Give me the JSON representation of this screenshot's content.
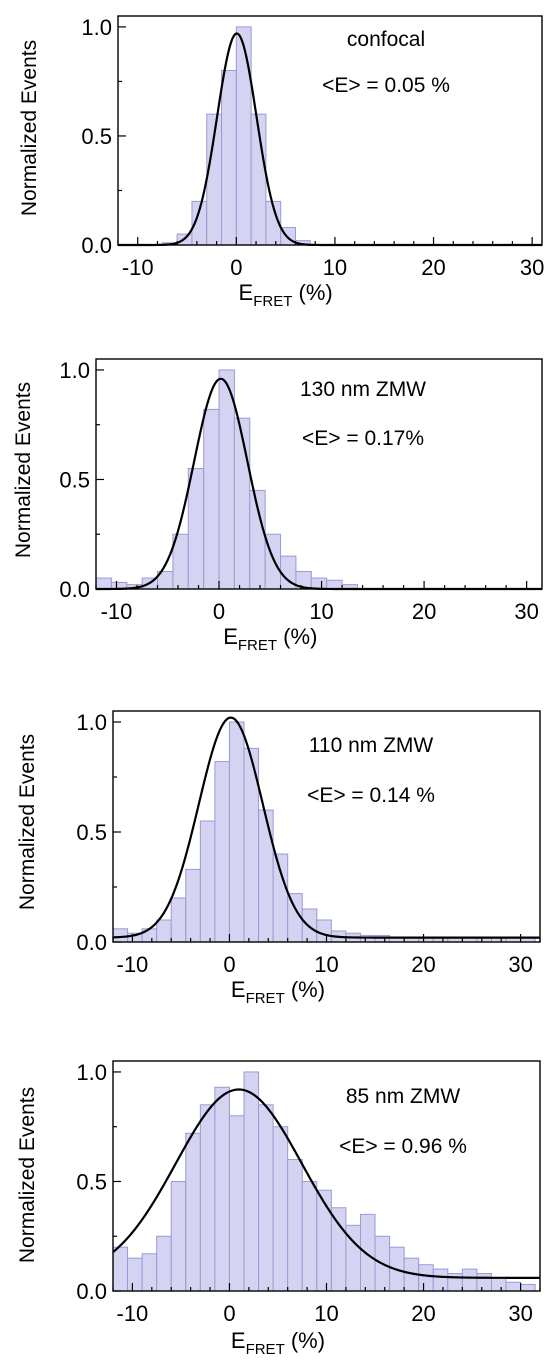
{
  "figure": {
    "bar_fill": "#d4d4f2",
    "bar_stroke": "#9a9ad4",
    "fit_color": "#000000"
  },
  "chart_data": [
    {
      "type": "bar",
      "xlabel_main": "E",
      "xlabel_sub": "FRET",
      "xlabel_unit": " (%)",
      "ylabel": "Normalized Events",
      "xlim": [
        -12,
        31
      ],
      "ylim": [
        0,
        1.05
      ],
      "xticks": [
        "-10",
        "0",
        "10",
        "20",
        "30"
      ],
      "xtick_values": [
        -10,
        0,
        10,
        20,
        30
      ],
      "yticks": [
        "0.0",
        "0.5",
        "1.0"
      ],
      "ytick_values": [
        0,
        0.5,
        1.0
      ],
      "annotations": [
        "confocal",
        "<E> = 0.05 %"
      ],
      "bin_width": 1.5,
      "bins_x": [
        -6.75,
        -5.25,
        -3.75,
        -2.25,
        -0.75,
        0.75,
        2.25,
        3.75,
        5.25,
        6.75
      ],
      "values": [
        0.01,
        0.05,
        0.2,
        0.6,
        0.8,
        1.0,
        0.6,
        0.2,
        0.08,
        0.02
      ],
      "fit": {
        "amplitude": 0.97,
        "center": 0.05,
        "sigma": 2.0,
        "offset": 0.0
      }
    },
    {
      "type": "bar",
      "xlabel_main": "E",
      "xlabel_sub": "FRET",
      "xlabel_unit": " (%)",
      "ylabel": "Normalized Events",
      "xlim": [
        -12,
        31.5
      ],
      "ylim": [
        0,
        1.05
      ],
      "xticks": [
        "-10",
        "0",
        "10",
        "20",
        "30"
      ],
      "xtick_values": [
        -10,
        0,
        10,
        20,
        30
      ],
      "yticks": [
        "0.0",
        "0.5",
        "1.0"
      ],
      "ytick_values": [
        0,
        0.5,
        1.0
      ],
      "annotations": [
        "130 nm ZMW",
        "<E> = 0.17%"
      ],
      "bin_width": 1.5,
      "bins_x": [
        -11.25,
        -9.75,
        -8.25,
        -6.75,
        -5.25,
        -3.75,
        -2.25,
        -0.75,
        0.75,
        2.25,
        3.75,
        5.25,
        6.75,
        8.25,
        9.75,
        11.25,
        12.75
      ],
      "values": [
        0.05,
        0.03,
        0.02,
        0.05,
        0.08,
        0.25,
        0.55,
        0.82,
        1.0,
        0.78,
        0.45,
        0.25,
        0.15,
        0.08,
        0.05,
        0.04,
        0.02
      ],
      "fit": {
        "amplitude": 0.96,
        "center": 0.17,
        "sigma": 2.6,
        "offset": 0.0
      }
    },
    {
      "type": "bar",
      "xlabel_main": "E",
      "xlabel_sub": "FRET",
      "xlabel_unit": " (%)",
      "ylabel": "Normalized Events",
      "xlim": [
        -12,
        32
      ],
      "ylim": [
        0,
        1.05
      ],
      "xticks": [
        "-10",
        "0",
        "10",
        "20",
        "30"
      ],
      "xtick_values": [
        -10,
        0,
        10,
        20,
        30
      ],
      "yticks": [
        "0.0",
        "0.5",
        "1.0"
      ],
      "ytick_values": [
        0,
        0.5,
        1.0
      ],
      "annotations": [
        "110 nm ZMW",
        "<E> = 0.14 %"
      ],
      "bin_width": 1.5,
      "bins_x": [
        -11.25,
        -9.75,
        -8.25,
        -6.75,
        -5.25,
        -3.75,
        -2.25,
        -0.75,
        0.75,
        2.25,
        3.75,
        5.25,
        6.75,
        8.25,
        9.75,
        11.25,
        12.75,
        14.25,
        15.75,
        17.25,
        18.75,
        20.25,
        21.75,
        23.25,
        24.75,
        26.25,
        27.75,
        29.25,
        30.75
      ],
      "values": [
        0.06,
        0.04,
        0.06,
        0.1,
        0.2,
        0.33,
        0.55,
        0.82,
        1.0,
        0.88,
        0.6,
        0.4,
        0.22,
        0.15,
        0.1,
        0.05,
        0.04,
        0.03,
        0.03,
        0.02,
        0.02,
        0.02,
        0.02,
        0.02,
        0.02,
        0.02,
        0.02,
        0.02,
        0.02
      ],
      "fit": {
        "amplitude": 1.0,
        "center": 0.14,
        "sigma": 3.3,
        "offset": 0.02
      }
    },
    {
      "type": "bar",
      "xlabel_main": "E",
      "xlabel_sub": "FRET",
      "xlabel_unit": " (%)",
      "ylabel": "Normalized Events",
      "xlim": [
        -12,
        32
      ],
      "ylim": [
        0,
        1.05
      ],
      "xticks": [
        "-10",
        "0",
        "10",
        "20",
        "30"
      ],
      "xtick_values": [
        -10,
        0,
        10,
        20,
        30
      ],
      "yticks": [
        "0.0",
        "0.5",
        "1.0"
      ],
      "ytick_values": [
        0,
        0.5,
        1.0
      ],
      "annotations": [
        "85 nm ZMW",
        "<E> = 0.96 %"
      ],
      "bin_width": 1.5,
      "bins_x": [
        -11.25,
        -9.75,
        -8.25,
        -6.75,
        -5.25,
        -3.75,
        -2.25,
        -0.75,
        0.75,
        2.25,
        3.75,
        5.25,
        6.75,
        8.25,
        9.75,
        11.25,
        12.75,
        14.25,
        15.75,
        17.25,
        18.75,
        20.25,
        21.75,
        23.25,
        24.75,
        26.25,
        27.75,
        29.25,
        30.75
      ],
      "values": [
        0.2,
        0.15,
        0.17,
        0.25,
        0.5,
        0.72,
        0.85,
        0.93,
        0.8,
        1.0,
        0.85,
        0.75,
        0.6,
        0.5,
        0.46,
        0.38,
        0.3,
        0.35,
        0.25,
        0.2,
        0.15,
        0.12,
        0.1,
        0.08,
        0.1,
        0.08,
        0.06,
        0.04,
        0.03
      ],
      "fit": {
        "amplitude": 0.86,
        "center": 0.96,
        "sigma": 6.5,
        "offset": 0.06
      }
    }
  ]
}
